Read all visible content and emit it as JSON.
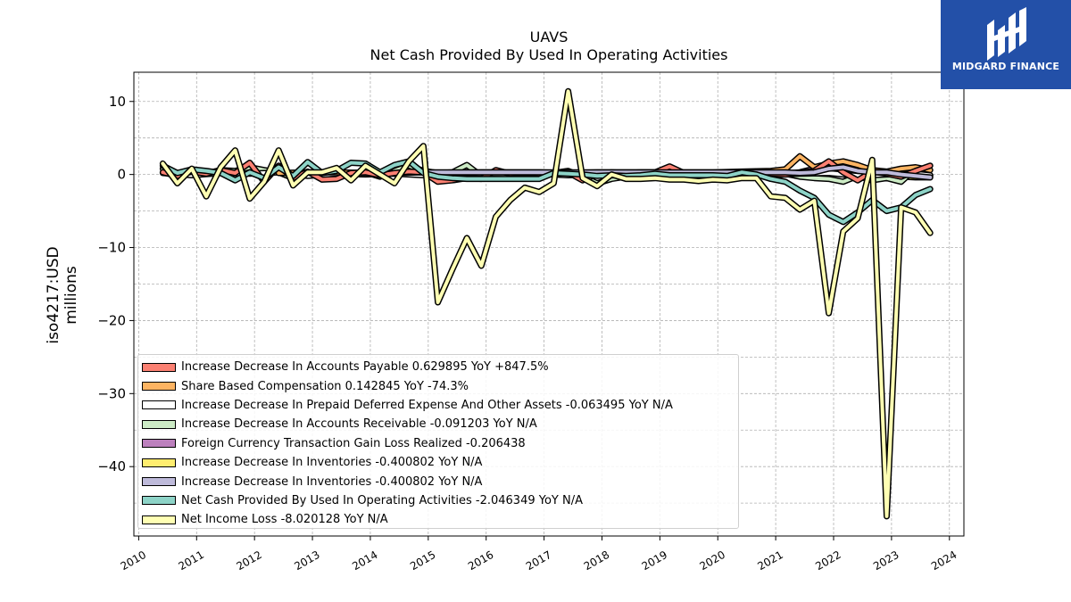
{
  "logo": {
    "text": "MIDGARD FINANCE",
    "bg": "#2350a8"
  },
  "chart_data": {
    "type": "area",
    "title": "UAVS",
    "subtitle": "Net Cash Provided By Used In Operating Activities",
    "ylabel": "iso4217:USD\nmillions",
    "xlabel": "",
    "xlim": [
      "2009-12-01",
      "2024-04-01"
    ],
    "ylim": [
      -49.5,
      14
    ],
    "yticks": [
      10,
      0,
      -10,
      -20,
      -30,
      -40
    ],
    "ytick_labels": [
      "10",
      "0",
      "−10",
      "−20",
      "−30",
      "−40"
    ],
    "xticks": [
      "2010",
      "2011",
      "2012",
      "2013",
      "2014",
      "2015",
      "2016",
      "2017",
      "2018",
      "2019",
      "2020",
      "2021",
      "2022",
      "2023",
      "2024"
    ],
    "grid": true,
    "legend_position": "lower-left",
    "series": [
      {
        "name": "Net Income Loss",
        "legend": "Net Income Loss  -8.020128 YoY N/A",
        "color": "#ffffb3",
        "z": 9,
        "x": [
          "2010-06",
          "2010-09",
          "2010-12",
          "2011-03",
          "2011-06",
          "2011-09",
          "2011-12",
          "2012-03",
          "2012-06",
          "2012-09",
          "2012-12",
          "2013-03",
          "2013-06",
          "2013-09",
          "2013-12",
          "2014-03",
          "2014-06",
          "2014-09",
          "2014-12",
          "2015-03",
          "2015-06",
          "2015-09",
          "2015-12",
          "2016-03",
          "2016-06",
          "2016-09",
          "2016-12",
          "2017-03",
          "2017-06",
          "2017-09",
          "2017-12",
          "2018-03",
          "2018-06",
          "2018-09",
          "2018-12",
          "2019-03",
          "2019-06",
          "2019-09",
          "2019-12",
          "2020-03",
          "2020-06",
          "2020-09",
          "2020-12",
          "2021-03",
          "2021-06",
          "2021-09",
          "2021-12",
          "2022-03",
          "2022-06",
          "2022-09",
          "2022-12",
          "2023-03",
          "2023-06",
          "2023-09",
          "2023-12"
        ],
        "y": [
          1.5,
          -1.2,
          0.8,
          -3.0,
          1.0,
          3.3,
          -3.3,
          -1.0,
          3.3,
          -1.5,
          0.3,
          0.3,
          0.9,
          -0.8,
          1.2,
          0,
          -1.2,
          1.8,
          3.9,
          -17.5,
          -13.0,
          -8.7,
          -12.5,
          -5.8,
          -3.5,
          -1.8,
          -2.4,
          -1.2,
          11.4,
          -0.5,
          -1.6,
          0.0,
          -0.6,
          -0.6,
          -0.5,
          -0.7,
          -0.7,
          -0.9,
          -0.7,
          -0.8,
          -0.5,
          -0.5,
          -3.0,
          -3.2,
          -4.8,
          -3.6,
          -19.0,
          -7.8,
          -6.0,
          2.0,
          -46.8,
          -4.5,
          -5.2,
          -8.0,
          null
        ]
      },
      {
        "name": "Net Cash Provided By Used In Operating Activities",
        "legend": "Net Cash Provided By Used In Operating Activities  -2.046349 YoY N/A",
        "color": "#8dd3c7",
        "z": 8,
        "x": [
          "2010-06",
          "2010-09",
          "2010-12",
          "2011-03",
          "2011-06",
          "2011-09",
          "2011-12",
          "2012-03",
          "2012-06",
          "2012-09",
          "2012-12",
          "2013-03",
          "2013-06",
          "2013-09",
          "2013-12",
          "2014-03",
          "2014-06",
          "2014-09",
          "2014-12",
          "2015-03",
          "2015-06",
          "2015-09",
          "2015-12",
          "2016-03",
          "2016-06",
          "2016-09",
          "2016-12",
          "2017-03",
          "2017-06",
          "2017-09",
          "2017-12",
          "2018-03",
          "2018-06",
          "2018-09",
          "2018-12",
          "2019-03",
          "2019-06",
          "2019-09",
          "2019-12",
          "2020-03",
          "2020-06",
          "2020-09",
          "2020-12",
          "2021-03",
          "2021-06",
          "2021-09",
          "2021-12",
          "2022-03",
          "2022-06",
          "2022-09",
          "2022-12",
          "2023-03",
          "2023-06",
          "2023-09",
          "2023-12"
        ],
        "y": [
          1.2,
          0.2,
          0.7,
          0.5,
          0.2,
          -0.8,
          0.3,
          -0.5,
          1.0,
          -0.2,
          1.7,
          0.2,
          0.5,
          1.6,
          1.5,
          0.3,
          1.3,
          1.8,
          0.2,
          -0.3,
          -0.5,
          -0.6,
          -0.6,
          -0.6,
          -0.6,
          -0.6,
          -0.6,
          0.2,
          0.1,
          0.0,
          -0.2,
          -0.1,
          -0.2,
          -0.1,
          0.1,
          -0.1,
          -0.1,
          -0.1,
          -0.1,
          -0.2,
          0.3,
          0.0,
          -0.6,
          -1.0,
          -2.2,
          -3.2,
          -5.5,
          -6.5,
          -5.2,
          -3.5,
          -5.0,
          -4.5,
          -2.8,
          -2.0,
          null
        ]
      },
      {
        "name": "Increase Decrease In Inventories",
        "legend": "Increase Decrease In Inventories  -0.400802 YoY N/A",
        "color": "#bebada",
        "z": 7,
        "x": [
          "2014-12",
          "2015-03",
          "2015-06",
          "2015-09",
          "2015-12",
          "2016-03",
          "2016-06",
          "2016-09",
          "2016-12",
          "2017-03",
          "2017-06",
          "2017-09",
          "2017-12",
          "2018-03",
          "2018-06",
          "2018-09",
          "2018-12",
          "2019-03",
          "2019-06",
          "2019-09",
          "2019-12",
          "2020-03",
          "2020-06",
          "2020-09",
          "2020-12",
          "2021-03",
          "2021-06",
          "2021-09",
          "2021-12",
          "2022-03",
          "2022-06",
          "2022-09",
          "2022-12",
          "2023-03",
          "2023-06",
          "2023-09"
        ],
        "y": [
          0.3,
          0.3,
          0.3,
          0.3,
          0.3,
          0.3,
          0.3,
          0.3,
          0.3,
          0.3,
          0.3,
          0.3,
          0.3,
          0.3,
          0.3,
          0.3,
          0.3,
          0.3,
          0.3,
          0.3,
          0.3,
          0.3,
          0.3,
          0.3,
          0.3,
          0.3,
          0.2,
          0.3,
          0.8,
          1.0,
          0.5,
          0.3,
          0.3,
          0.0,
          -0.2,
          -0.4
        ]
      },
      {
        "name": "Increase Decrease In Inventories (2)",
        "legend": "Increase Decrease In Inventories  -0.400802 YoY N/A",
        "color": "#ffed6f",
        "z": 1,
        "x": [
          "2022-03",
          "2022-06",
          "2022-09",
          "2022-12",
          "2023-03",
          "2023-06",
          "2023-09"
        ],
        "y": [
          0.0,
          0.0,
          -0.2,
          -0.3,
          -0.3,
          -0.4,
          -0.4
        ]
      },
      {
        "name": "Foreign Currency Transaction Gain Loss Realized",
        "legend": "Foreign Currency Transaction Gain Loss Realized  -0.206438",
        "color": "#bc80bd",
        "z": 2,
        "x": [
          "2020-06",
          "2020-09",
          "2020-12",
          "2021-03",
          "2021-06",
          "2021-09",
          "2021-12",
          "2022-03",
          "2022-06",
          "2022-09",
          "2022-12",
          "2023-03",
          "2023-06",
          "2023-09"
        ],
        "y": [
          0,
          0,
          0,
          0.1,
          0.3,
          0.8,
          1.2,
          1.5,
          0.9,
          0.2,
          0.1,
          0.0,
          0.1,
          -0.2
        ]
      },
      {
        "name": "Increase Decrease In Accounts Receivable",
        "legend": "Increase Decrease In Accounts Receivable  -0.091203 YoY N/A",
        "color": "#ccebc5",
        "z": 3,
        "x": [
          "2010-06",
          "2010-09",
          "2010-12",
          "2011-03",
          "2011-06",
          "2011-09",
          "2011-12",
          "2012-03",
          "2012-06",
          "2012-09",
          "2012-12",
          "2013-03",
          "2013-06",
          "2013-09",
          "2013-12",
          "2014-03",
          "2014-06",
          "2014-09",
          "2014-12",
          "2015-03",
          "2015-06",
          "2015-09",
          "2015-12",
          "2016-03",
          "2016-06",
          "2016-09",
          "2016-12",
          "2017-03",
          "2017-06",
          "2017-09",
          "2017-12",
          "2018-03",
          "2018-06",
          "2018-09",
          "2018-12",
          "2019-03",
          "2019-06",
          "2019-09",
          "2019-12",
          "2020-03",
          "2020-06",
          "2020-09",
          "2020-12",
          "2021-03",
          "2021-06",
          "2021-09",
          "2021-12",
          "2022-03",
          "2022-06",
          "2022-09",
          "2022-12",
          "2023-03",
          "2023-06",
          "2023-09"
        ],
        "y": [
          0.8,
          0.2,
          0.5,
          0.1,
          0.6,
          0.5,
          1.0,
          0.6,
          0.3,
          -0.5,
          0.3,
          0.2,
          0.4,
          0.1,
          0.3,
          -0.3,
          0.5,
          1.2,
          0.5,
          0.2,
          0.3,
          1.3,
          -0.2,
          0.3,
          0.2,
          0.1,
          0.1,
          0.2,
          0.5,
          -0.3,
          -1.2,
          -0.6,
          -0.3,
          -0.2,
          0.1,
          0.5,
          0.2,
          -0.2,
          0.1,
          -0.1,
          0.1,
          0.2,
          0.2,
          0.1,
          -0.3,
          -0.5,
          -0.6,
          -1.0,
          -0.2,
          -0.8,
          -0.5,
          -1.0,
          0.8,
          -0.1
        ]
      },
      {
        "name": "Increase Decrease In Prepaid Deferred Expense And Other Assets",
        "legend": "Increase Decrease In Prepaid Deferred Expense And Other Assets  -0.063495 YoY N/A",
        "color": "#ffffff",
        "z": 4,
        "x": [
          "2010-06",
          "2010-12",
          "2011-06",
          "2011-12",
          "2012-06",
          "2012-12",
          "2013-06",
          "2013-12",
          "2014-06",
          "2014-12",
          "2015-06",
          "2015-12",
          "2016-06",
          "2016-12",
          "2017-06",
          "2017-12",
          "2018-06",
          "2018-12",
          "2019-06",
          "2019-12",
          "2020-06",
          "2020-12",
          "2021-06",
          "2021-12",
          "2022-06",
          "2022-12",
          "2023-06",
          "2023-09"
        ],
        "y": [
          0.2,
          -0.1,
          0.2,
          0.1,
          0.3,
          -0.2,
          0.1,
          0.0,
          0.1,
          -0.1,
          -0.2,
          0.1,
          0.0,
          0.1,
          -0.1,
          0.0,
          0.1,
          0.0,
          0.2,
          0.0,
          0.1,
          -0.1,
          0.1,
          0.2,
          -0.2,
          0.0,
          0.1,
          -0.1
        ]
      },
      {
        "name": "Share Based Compensation",
        "legend": "Share Based Compensation  0.142845 YoY -74.3%",
        "color": "#fdb462",
        "z": 5,
        "x": [
          "2012-06",
          "2012-12",
          "2013-06",
          "2013-12",
          "2014-06",
          "2014-12",
          "2015-06",
          "2015-12",
          "2016-06",
          "2016-12",
          "2017-06",
          "2017-12",
          "2018-06",
          "2018-12",
          "2019-06",
          "2019-12",
          "2020-06",
          "2020-12",
          "2021-03",
          "2021-06",
          "2021-09",
          "2021-12",
          "2022-03",
          "2022-06",
          "2022-09",
          "2022-12",
          "2023-03",
          "2023-06",
          "2023-09"
        ],
        "y": [
          0.2,
          0.3,
          0.3,
          0.2,
          0.2,
          0.3,
          0.2,
          0.3,
          0.3,
          0.3,
          0.2,
          0.3,
          0.3,
          0.3,
          0.3,
          0.3,
          0.4,
          0.5,
          0.7,
          2.5,
          1.0,
          1.5,
          1.8,
          1.3,
          0.6,
          0.4,
          0.8,
          1.0,
          0.6
        ]
      },
      {
        "name": "Increase Decrease In Accounts Payable",
        "legend": "Increase Decrease In Accounts Payable  0.629895 YoY +847.5%",
        "color": "#fb8072",
        "z": 6,
        "x": [
          "2010-06",
          "2010-09",
          "2010-12",
          "2011-03",
          "2011-06",
          "2011-09",
          "2011-12",
          "2012-03",
          "2012-06",
          "2012-09",
          "2012-12",
          "2013-03",
          "2013-06",
          "2013-09",
          "2013-12",
          "2014-03",
          "2014-06",
          "2014-09",
          "2014-12",
          "2015-03",
          "2015-06",
          "2015-09",
          "2015-12",
          "2016-03",
          "2016-06",
          "2016-09",
          "2016-12",
          "2017-03",
          "2017-06",
          "2017-09",
          "2017-12",
          "2018-03",
          "2018-06",
          "2018-09",
          "2018-12",
          "2019-03",
          "2019-06",
          "2019-09",
          "2019-12",
          "2020-03",
          "2020-06",
          "2020-09",
          "2020-12",
          "2021-03",
          "2021-06",
          "2021-09",
          "2021-12",
          "2022-03",
          "2022-06",
          "2022-09",
          "2022-12",
          "2023-03",
          "2023-06",
          "2023-09"
        ],
        "y": [
          0.3,
          -0.2,
          0.4,
          0.1,
          0.6,
          0.2,
          1.6,
          -1.0,
          1.2,
          -0.5,
          0.4,
          -0.7,
          -0.6,
          0.2,
          0.3,
          -0.1,
          0.2,
          0.4,
          0.3,
          -1.0,
          -0.8,
          -0.5,
          -0.6,
          0.6,
          0.1,
          0.2,
          0.1,
          0.0,
          0.3,
          -0.8,
          0.1,
          0.3,
          0.2,
          0.3,
          0.3,
          1.1,
          0.2,
          0.0,
          0.2,
          0.1,
          0.3,
          0.2,
          0.1,
          0.0,
          0.2,
          0.5,
          1.8,
          0.3,
          -0.8,
          0.4,
          0.1,
          -0.3,
          0.5,
          1.2
        ]
      }
    ],
    "legend_order": [
      "Increase Decrease In Accounts Payable",
      "Share Based Compensation",
      "Increase Decrease In Prepaid Deferred Expense And Other Assets",
      "Increase Decrease In Accounts Receivable",
      "Foreign Currency Transaction Gain Loss Realized",
      "Increase Decrease In Inventories (2)",
      "Increase Decrease In Inventories",
      "Net Cash Provided By Used In Operating Activities",
      "Net Income Loss"
    ]
  }
}
